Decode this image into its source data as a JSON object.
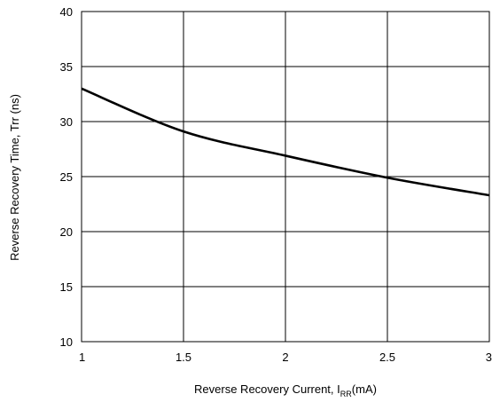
{
  "chart_data": {
    "type": "line",
    "title": "",
    "xlabel": "Reverse Recovery Current, ",
    "xlabel_symbol": "I",
    "xlabel_subscript": "RR",
    "xlabel_unit": "(mA)",
    "ylabel": "Reverse Recovery Time, Trr (ns)",
    "xlim": [
      1,
      3
    ],
    "ylim": [
      10,
      40
    ],
    "xticks": [
      1,
      1.5,
      2,
      2.5,
      3
    ],
    "xtick_labels": [
      "1",
      "1.5",
      "2",
      "2.5",
      "3"
    ],
    "yticks": [
      10,
      15,
      20,
      25,
      30,
      35,
      40
    ],
    "ytick_labels": [
      "10",
      "15",
      "20",
      "25",
      "30",
      "35",
      "40"
    ],
    "grid": true,
    "legend": "none",
    "line_color": "#000000",
    "series": [
      {
        "x": [
          1.0,
          1.5,
          2.0,
          2.5,
          3.0
        ],
        "y": [
          33.0,
          29.1,
          26.9,
          24.9,
          23.3
        ]
      }
    ]
  }
}
